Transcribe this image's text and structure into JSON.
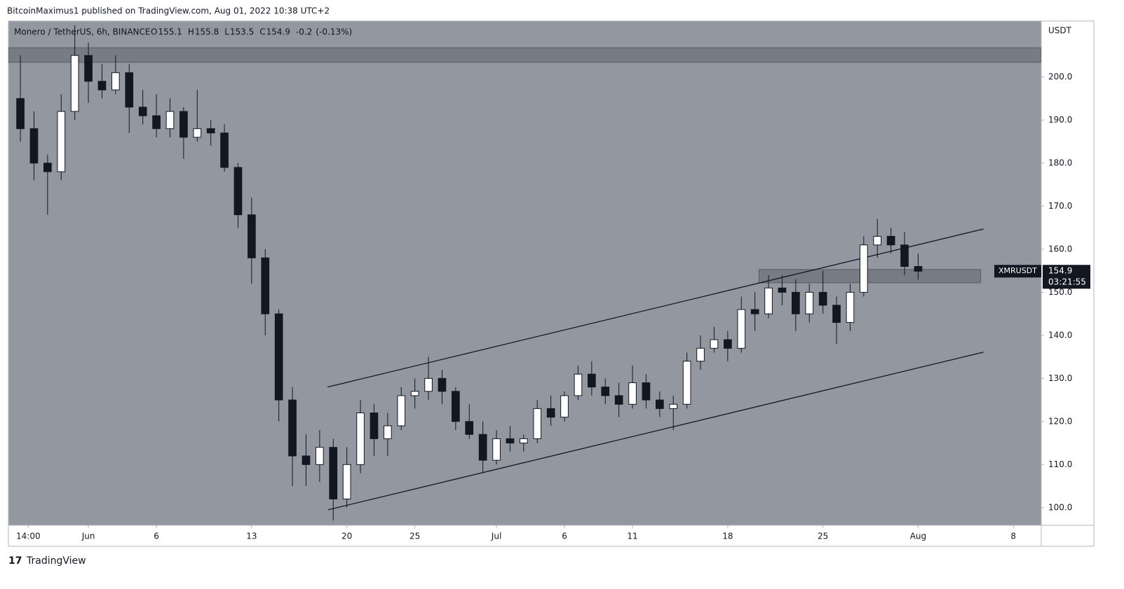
{
  "header": {
    "published": "BitcoinMaximus1 published on TradingView.com, Aug 01, 2022 10:38 UTC+2",
    "footer": "TradingView"
  },
  "chart_data": {
    "type": "candlestick",
    "title": "Monero / TetherUS, 6h, BINANCE",
    "ohlc_legend": [
      {
        "label": "O",
        "value": 155.1
      },
      {
        "label": "H",
        "value": 155.8
      },
      {
        "label": "L",
        "value": 153.5
      },
      {
        "label": "C",
        "value": 154.9
      }
    ],
    "change": -0.2,
    "change_label": "(-0.13%)",
    "y_axis_label": "USDT",
    "symbol": "XMRUSDT",
    "last_price": 154.9,
    "countdown": "03:21:55",
    "background": "#9397a0",
    "up_color": "#ffffff",
    "down_color": "#131722",
    "xlim": [
      -5.88,
      70.05
    ],
    "xticks": [
      {
        "value": -4.42,
        "label": "14:00"
      },
      {
        "value": 0,
        "label": "Jun"
      },
      {
        "value": 5,
        "label": "6"
      },
      {
        "value": 12,
        "label": "13"
      },
      {
        "value": 19,
        "label": "20"
      },
      {
        "value": 24,
        "label": "25"
      },
      {
        "value": 30,
        "label": "Jul"
      },
      {
        "value": 35,
        "label": "6"
      },
      {
        "value": 40,
        "label": "11"
      },
      {
        "value": 47,
        "label": "18"
      },
      {
        "value": 54,
        "label": "25"
      },
      {
        "value": 61,
        "label": "Aug"
      },
      {
        "value": 68,
        "label": "8"
      }
    ],
    "ylim": [
      95.9,
      213
    ],
    "yticks": [
      {
        "value": 100,
        "label": "100.0"
      },
      {
        "value": 110,
        "label": "110.0"
      },
      {
        "value": 120,
        "label": "120.0"
      },
      {
        "value": 130,
        "label": "130.0"
      },
      {
        "value": 140,
        "label": "140.0"
      },
      {
        "value": 150,
        "label": "150.0"
      },
      {
        "value": 160,
        "label": "160.0"
      },
      {
        "value": 170,
        "label": "170.0"
      },
      {
        "value": 180,
        "label": "180.0"
      },
      {
        "value": 190,
        "label": "190.0"
      },
      {
        "value": 200,
        "label": "200.0"
      }
    ],
    "x": [
      -5,
      -4,
      -3,
      -2,
      -1,
      0,
      1,
      2,
      3,
      4,
      5,
      6,
      7,
      8,
      9,
      10,
      11,
      12,
      13,
      14,
      15,
      16,
      17,
      18,
      19,
      20,
      21,
      22,
      23,
      24,
      25,
      26,
      27,
      28,
      29,
      30,
      31,
      32,
      33,
      34,
      35,
      36,
      37,
      38,
      39,
      40,
      41,
      42,
      43,
      44,
      45,
      46,
      47,
      48,
      49,
      50,
      51,
      52,
      53,
      54,
      55,
      56,
      57,
      58,
      59,
      60,
      61
    ],
    "open": [
      195,
      188,
      180,
      178,
      192,
      205,
      199,
      197,
      201,
      193,
      191,
      188,
      192,
      186,
      188,
      187,
      179,
      168,
      158,
      145,
      125,
      112,
      110,
      114,
      102,
      110,
      122,
      116,
      119,
      126,
      127,
      130,
      127,
      120,
      117,
      111,
      116,
      115,
      116,
      123,
      121,
      126,
      131,
      128,
      126,
      124,
      129,
      125,
      123,
      124,
      134,
      137,
      139,
      137,
      146,
      145,
      151,
      150,
      145,
      150,
      147,
      143,
      150,
      161,
      163,
      161,
      156
    ],
    "high": [
      205,
      192,
      182,
      196,
      212,
      208,
      203,
      205,
      203,
      197,
      196,
      195,
      193,
      197,
      190,
      189,
      180,
      172,
      160,
      146,
      128,
      117,
      118,
      116,
      114,
      125,
      124,
      122,
      128,
      130,
      135,
      132,
      128,
      124,
      120,
      118,
      119,
      117,
      125,
      126,
      127,
      133,
      134,
      130,
      129,
      133,
      131,
      127,
      126,
      136,
      140,
      142,
      141,
      149,
      150,
      154,
      154,
      153,
      152,
      155,
      149,
      152,
      163,
      167,
      165,
      164,
      159
    ],
    "low": [
      185,
      176,
      168,
      176,
      190,
      194,
      195,
      196,
      187,
      189,
      186,
      186,
      181,
      185,
      184,
      178,
      165,
      152,
      140,
      120,
      105,
      105,
      106,
      97,
      100,
      108,
      112,
      112,
      118,
      123,
      125,
      124,
      118,
      116,
      108,
      110,
      113,
      113,
      115,
      119,
      120,
      125,
      126,
      124,
      121,
      123,
      123,
      121,
      118,
      123,
      132,
      136,
      134,
      136,
      141,
      144,
      147,
      141,
      143,
      145,
      138,
      141,
      149,
      158,
      159,
      154,
      153
    ],
    "close": [
      188,
      180,
      178,
      192,
      205,
      199,
      197,
      201,
      193,
      191,
      188,
      192,
      186,
      188,
      187,
      179,
      168,
      158,
      145,
      125,
      112,
      110,
      114,
      102,
      110,
      122,
      116,
      119,
      126,
      127,
      130,
      127,
      120,
      117,
      111,
      116,
      115,
      116,
      123,
      121,
      126,
      131,
      128,
      126,
      124,
      129,
      125,
      123,
      124,
      134,
      137,
      139,
      137,
      146,
      145,
      151,
      150,
      145,
      150,
      147,
      143,
      150,
      161,
      163,
      161,
      156,
      154.9
    ],
    "zones": [
      {
        "x": [
          -5.88,
          70.05
        ],
        "y": [
          203.4,
          206.8
        ]
      },
      {
        "x": [
          49.3,
          65.6
        ],
        "y": [
          152.2,
          155.3
        ]
      }
    ],
    "trendlines": [
      {
        "x": [
          17.58,
          65.8
        ],
        "y": [
          128.0,
          164.7
        ]
      },
      {
        "x": [
          17.63,
          65.8
        ],
        "y": [
          99.5,
          136.1
        ]
      }
    ]
  }
}
